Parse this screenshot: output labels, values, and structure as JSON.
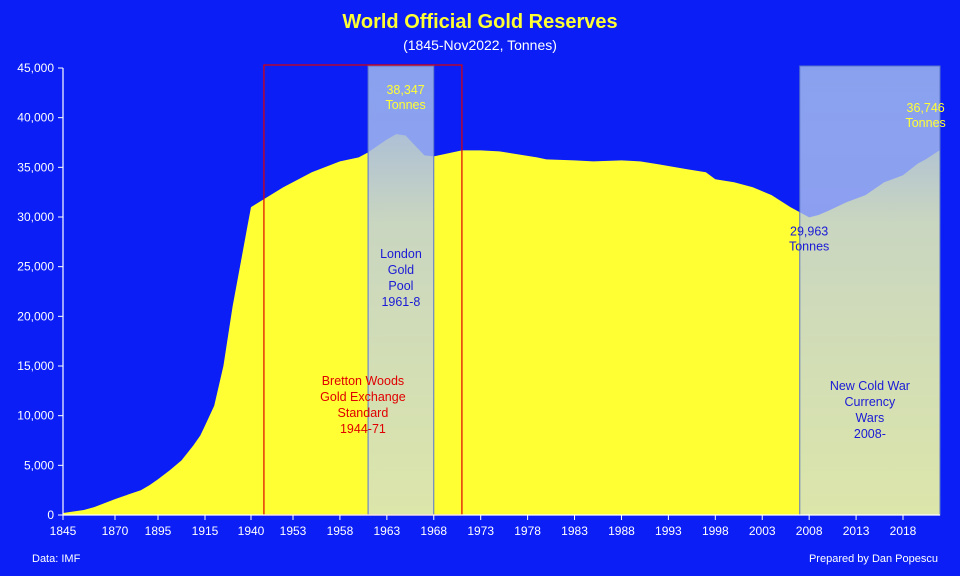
{
  "chart_data": {
    "type": "area",
    "title": "World Official Gold Reserves",
    "subtitle": "(1845-Nov2022, Tonnes)",
    "xlabel": "",
    "ylabel": "",
    "xlim": [
      1845,
      2022.9
    ],
    "ylim": [
      0,
      45000
    ],
    "yticks": [
      "0",
      "5,000",
      "10,000",
      "15,000",
      "20,000",
      "25,000",
      "30,000",
      "35,000",
      "40,000",
      "45,000"
    ],
    "ytick_values": [
      0,
      5000,
      10000,
      15000,
      20000,
      25000,
      30000,
      35000,
      40000,
      45000
    ],
    "xticks": [
      "1845",
      "1870",
      "1895",
      "1915",
      "1940",
      "1953",
      "1958",
      "1963",
      "1968",
      "1973",
      "1978",
      "1983",
      "1988",
      "1993",
      "1998",
      "2003",
      "2008",
      "2013",
      "2018"
    ],
    "grid": false,
    "legend": "none",
    "colors": {
      "background": "#0a1ef5",
      "area": "#ffff33",
      "shade": "#aabbee",
      "box": "#e00000"
    },
    "series": [
      {
        "x": [
          1845,
          1850,
          1855,
          1860,
          1865,
          1870,
          1875,
          1880,
          1885,
          1890,
          1895,
          1900,
          1905,
          1910,
          1913,
          1915,
          1920,
          1925,
          1930,
          1935,
          1938,
          1940,
          1945,
          1950,
          1955,
          1958,
          1960,
          1961,
          1963,
          1964,
          1965,
          1966,
          1967,
          1968,
          1969,
          1970,
          1971,
          1973,
          1975,
          1977,
          1979,
          1980,
          1983,
          1985,
          1988,
          1990,
          1992,
          1995,
          1997,
          1998,
          2000,
          2002,
          2004,
          2006,
          2008,
          2009,
          2010,
          2012,
          2014,
          2016,
          2018,
          2020,
          2021,
          2022.9
        ],
        "values": [
          200,
          350,
          500,
          800,
          1200,
          1600,
          1900,
          2200,
          2500,
          3000,
          3600,
          4500,
          5500,
          7000,
          8000,
          9000,
          11000,
          15000,
          21000,
          26000,
          29000,
          31000,
          32000,
          33000,
          34500,
          35600,
          36000,
          36500,
          37800,
          38347,
          38200,
          37200,
          36200,
          36100,
          36300,
          36500,
          36700,
          36700,
          36600,
          36300,
          36000,
          35800,
          35700,
          35600,
          35700,
          35600,
          35300,
          34800,
          34500,
          33800,
          33500,
          33000,
          32200,
          31000,
          29963,
          30200,
          30600,
          31500,
          32200,
          33500,
          34200,
          35400,
          35800,
          36746
        ]
      }
    ],
    "shaded_regions": [
      {
        "label_lines": [
          "London",
          "Gold",
          "Pool",
          "1961-8"
        ],
        "x_start": 1961,
        "x_end": 1968
      },
      {
        "label_lines": [
          "New Cold War",
          "Currency",
          "Wars",
          "2008-"
        ],
        "x_start": 2007,
        "x_end": 2022.9
      }
    ],
    "boxed_regions": [
      {
        "label_lines": [
          "Bretton Woods",
          "Gold Exchange",
          "Standard",
          "1944-71"
        ],
        "x_start": 1944,
        "x_end": 1971
      }
    ],
    "annotations": [
      {
        "lines": [
          "38,347",
          "Tonnes"
        ],
        "x": 1965,
        "y": 38347
      },
      {
        "lines": [
          "29,963",
          "Tonnes"
        ],
        "x": 2008,
        "y": 29963
      },
      {
        "lines": [
          "36,746",
          "Tonnes"
        ],
        "x": 2021,
        "y": 36746
      }
    ]
  },
  "footer": {
    "source": "Data: IMF",
    "credit": "Prepared by Dan Popescu"
  }
}
